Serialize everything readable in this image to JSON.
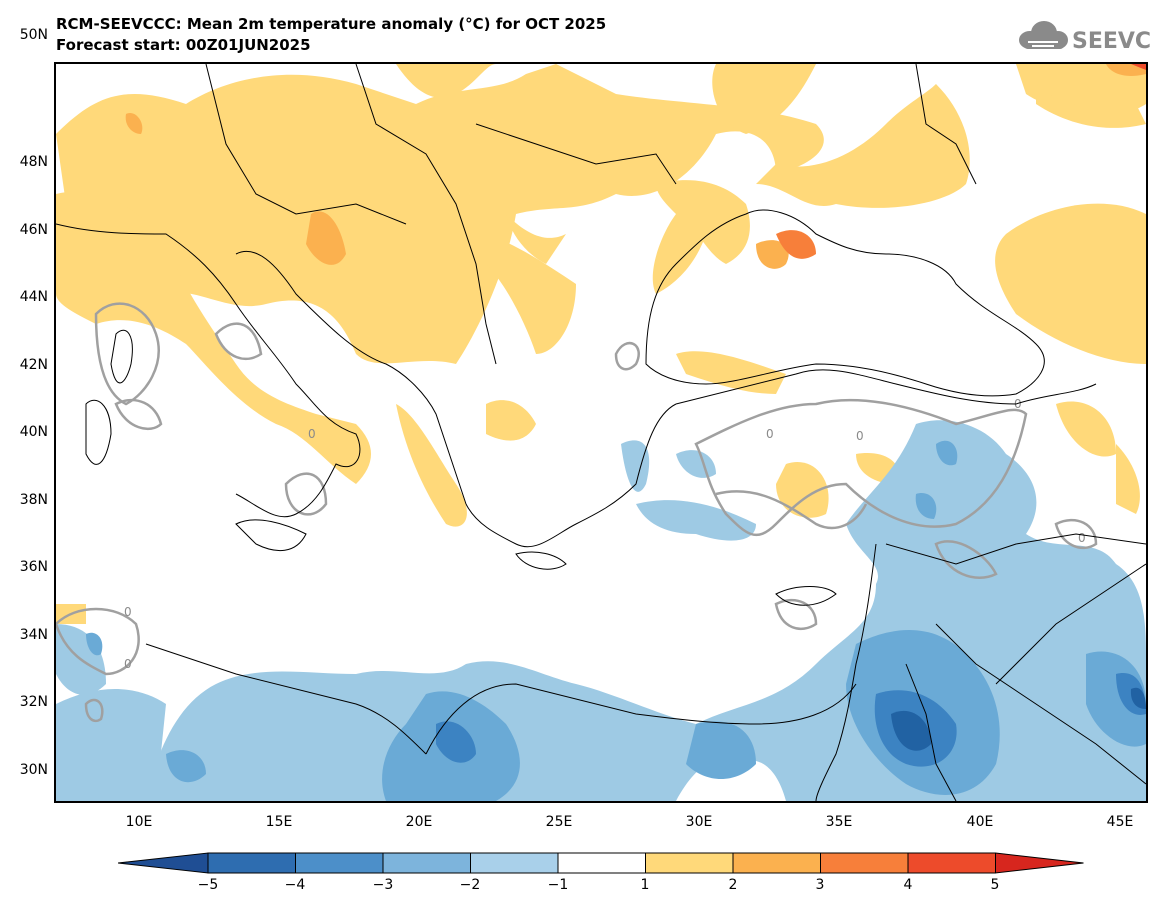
{
  "header": {
    "title": "RCM-SEEVCCC: Mean 2m temperature anomaly (°C) for OCT 2025",
    "subtitle": "Forecast start: 00Z01JUN2025",
    "logo_text": "SEEVCCC",
    "logo_icon": "cloud-icon"
  },
  "map": {
    "projection": "lat-lon",
    "lon_range": [
      7,
      46
    ],
    "lat_range": [
      29,
      51
    ],
    "lat_labels": [
      "50N",
      "48N",
      "46N",
      "44N",
      "42N",
      "40N",
      "38N",
      "36N",
      "34N",
      "32N",
      "30N"
    ],
    "lon_labels": [
      "10E",
      "15E",
      "20E",
      "25E",
      "30E",
      "35E",
      "40E",
      "45E"
    ],
    "contour_label": "0",
    "colors": {
      "warm_1_2": "#FFD97A",
      "warm_2_3": "#FBB14F",
      "warm_3_4": "#F77F3A",
      "warm_4_5": "#ED4B2B",
      "cool_m1_m2": "#9ECAE4",
      "cool_m2_m3": "#6AAAD6",
      "cool_m3_m4": "#3C83C2",
      "cool_m4_m5": "#2162A3",
      "zero_contour": "#A0A0A0",
      "borders": "#000000"
    }
  },
  "colorbar": {
    "labels": [
      "−5",
      "−4",
      "−3",
      "−2",
      "−1",
      "1",
      "2",
      "3",
      "4",
      "5"
    ],
    "colors": [
      "#1F4E94",
      "#2E6DB0",
      "#4C8FC9",
      "#7DB4DC",
      "#A9D0EA",
      "#FFFFFF",
      "#FFD97A",
      "#FBB14F",
      "#F77F3A",
      "#ED4B2B",
      "#D7261E"
    ]
  }
}
